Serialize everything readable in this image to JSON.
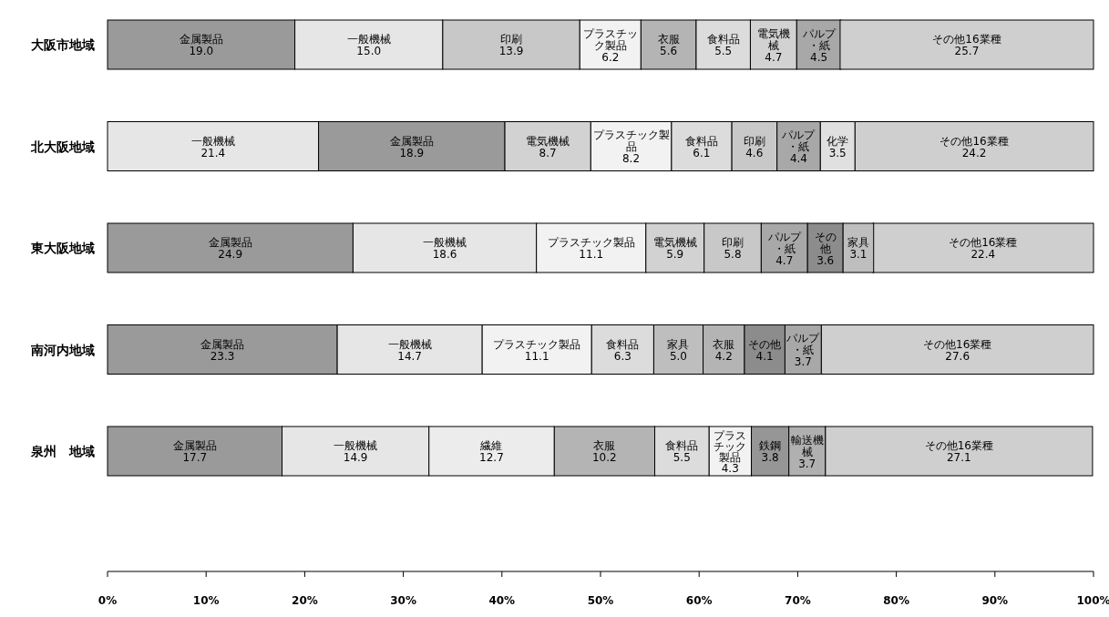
{
  "chart_data": {
    "type": "bar",
    "orientation": "horizontal",
    "categories": [
      "大阪市地域",
      "北大阪地域",
      "東大阪地域",
      "南河内地域",
      "泉州　地域"
    ],
    "series": [
      {
        "name": "金属製品",
        "color": "#9a9a9a",
        "values": [
          19.0,
          18.9,
          24.9,
          23.3,
          17.7
        ],
        "value_labels": [
          "19.0",
          "18.9",
          "24.9",
          "23.3",
          "17.7"
        ],
        "base": [
          0,
          21.4,
          0,
          0,
          0
        ]
      },
      {
        "name": "一般機械",
        "color": "#e6e6e6",
        "values": [
          15.0,
          21.4,
          18.6,
          14.7,
          14.9
        ],
        "value_labels": [
          "15.0",
          "21.4",
          "18.6",
          "14.7",
          "14.9"
        ],
        "base": [
          19.0,
          0,
          24.9,
          23.3,
          17.7
        ]
      },
      {
        "name": "印刷",
        "color": "#c8c8c8",
        "values": [
          13.9,
          4.6,
          5.8,
          null,
          null
        ],
        "value_labels": [
          "13.9",
          "4.6",
          "5.8",
          null,
          null
        ],
        "base": [
          34.0,
          63.3,
          60.5,
          null,
          null
        ]
      },
      {
        "name": "プラスチック製品",
        "color": "#f2f2f2",
        "values": [
          6.2,
          8.2,
          11.1,
          11.1,
          4.3
        ],
        "value_labels": [
          "6.2",
          "8.2",
          "11.1",
          "11.1",
          "4.3"
        ],
        "base": [
          47.9,
          49.0,
          43.5,
          38.0,
          61.0
        ]
      },
      {
        "name": "衣服",
        "color": "#b4b4b4",
        "values": [
          5.6,
          null,
          null,
          4.2,
          10.2
        ],
        "value_labels": [
          "5.6",
          null,
          null,
          "4.2",
          "10.2"
        ],
        "base": [
          54.1,
          null,
          null,
          60.4,
          45.3
        ]
      },
      {
        "name": "食料品",
        "color": "#dcdcdc",
        "values": [
          5.5,
          6.1,
          null,
          6.3,
          5.5
        ],
        "value_labels": [
          "5.5",
          "6.1",
          null,
          "6.3",
          "5.5"
        ],
        "base": [
          59.7,
          57.2,
          null,
          49.1,
          55.5
        ]
      },
      {
        "name": "電気機械",
        "color": "#d2d2d2",
        "values": [
          4.7,
          8.7,
          5.9,
          null,
          null
        ],
        "value_labels": [
          "4.7",
          "8.7",
          "5.9",
          null,
          null
        ],
        "base": [
          65.2,
          40.3,
          54.6,
          null,
          null
        ]
      },
      {
        "name": "パルプ・紙",
        "color": "#a8a8a8",
        "values": [
          4.5,
          4.4,
          4.7,
          3.7,
          null
        ],
        "value_labels": [
          "4.5",
          "4.4",
          "4.7",
          "3.7",
          null
        ],
        "base": [
          69.9,
          67.9,
          66.3,
          68.7,
          null
        ]
      },
      {
        "name": "その他16業種",
        "color": "#cfcfcf",
        "values": [
          25.7,
          24.2,
          22.4,
          27.6,
          27.1
        ],
        "value_labels": [
          "25.7",
          "24.2",
          "22.4",
          "27.6",
          "27.1"
        ],
        "base": [
          74.3,
          75.8,
          77.6,
          72.4,
          72.8
        ]
      },
      {
        "name": "化学",
        "color": "#e0e0e0",
        "values": [
          null,
          3.5,
          null,
          null,
          null
        ],
        "value_labels": [
          null,
          "3.5",
          null,
          null,
          null
        ],
        "base": [
          null,
          72.3,
          null,
          null,
          null
        ]
      },
      {
        "name": "その他",
        "color": "#8c8c8c",
        "values": [
          null,
          null,
          3.6,
          4.1,
          null
        ],
        "value_labels": [
          null,
          null,
          "3.6",
          "4.1",
          null
        ],
        "base": [
          null,
          null,
          71.0,
          64.6,
          null
        ]
      },
      {
        "name": "家具",
        "color": "#bebebe",
        "values": [
          null,
          null,
          3.1,
          5.0,
          null
        ],
        "value_labels": [
          null,
          null,
          "3.1",
          "5.0",
          null
        ],
        "base": [
          null,
          null,
          74.6,
          55.4,
          null
        ]
      },
      {
        "name": "繊維",
        "color": "#ececec",
        "values": [
          null,
          null,
          null,
          null,
          12.7
        ],
        "value_labels": [
          null,
          null,
          null,
          null,
          "12.7"
        ],
        "base": [
          null,
          null,
          null,
          null,
          32.6
        ]
      },
      {
        "name": "鉄鋼",
        "color": "#969696",
        "values": [
          null,
          null,
          null,
          null,
          3.8
        ],
        "value_labels": [
          null,
          null,
          null,
          null,
          "3.8"
        ],
        "base": [
          null,
          null,
          null,
          null,
          65.3
        ]
      },
      {
        "name": "輸送機械",
        "color": "#b0b0b0",
        "values": [
          null,
          null,
          null,
          null,
          3.7
        ],
        "value_labels": [
          null,
          null,
          null,
          null,
          "3.7"
        ],
        "base": [
          null,
          null,
          null,
          null,
          69.1
        ]
      }
    ],
    "xlim": [
      0,
      100
    ],
    "xticks": [
      {
        "value": 0,
        "label": "0%"
      },
      {
        "value": 10,
        "label": "10%"
      },
      {
        "value": 20,
        "label": "20%"
      },
      {
        "value": 30,
        "label": "30%"
      },
      {
        "value": 40,
        "label": "40%"
      },
      {
        "value": 50,
        "label": "50%"
      },
      {
        "value": 60,
        "label": "60%"
      },
      {
        "value": 70,
        "label": "70%"
      },
      {
        "value": 80,
        "label": "80%"
      },
      {
        "value": 90,
        "label": "90%"
      },
      {
        "value": 100,
        "label": "100%"
      }
    ]
  }
}
